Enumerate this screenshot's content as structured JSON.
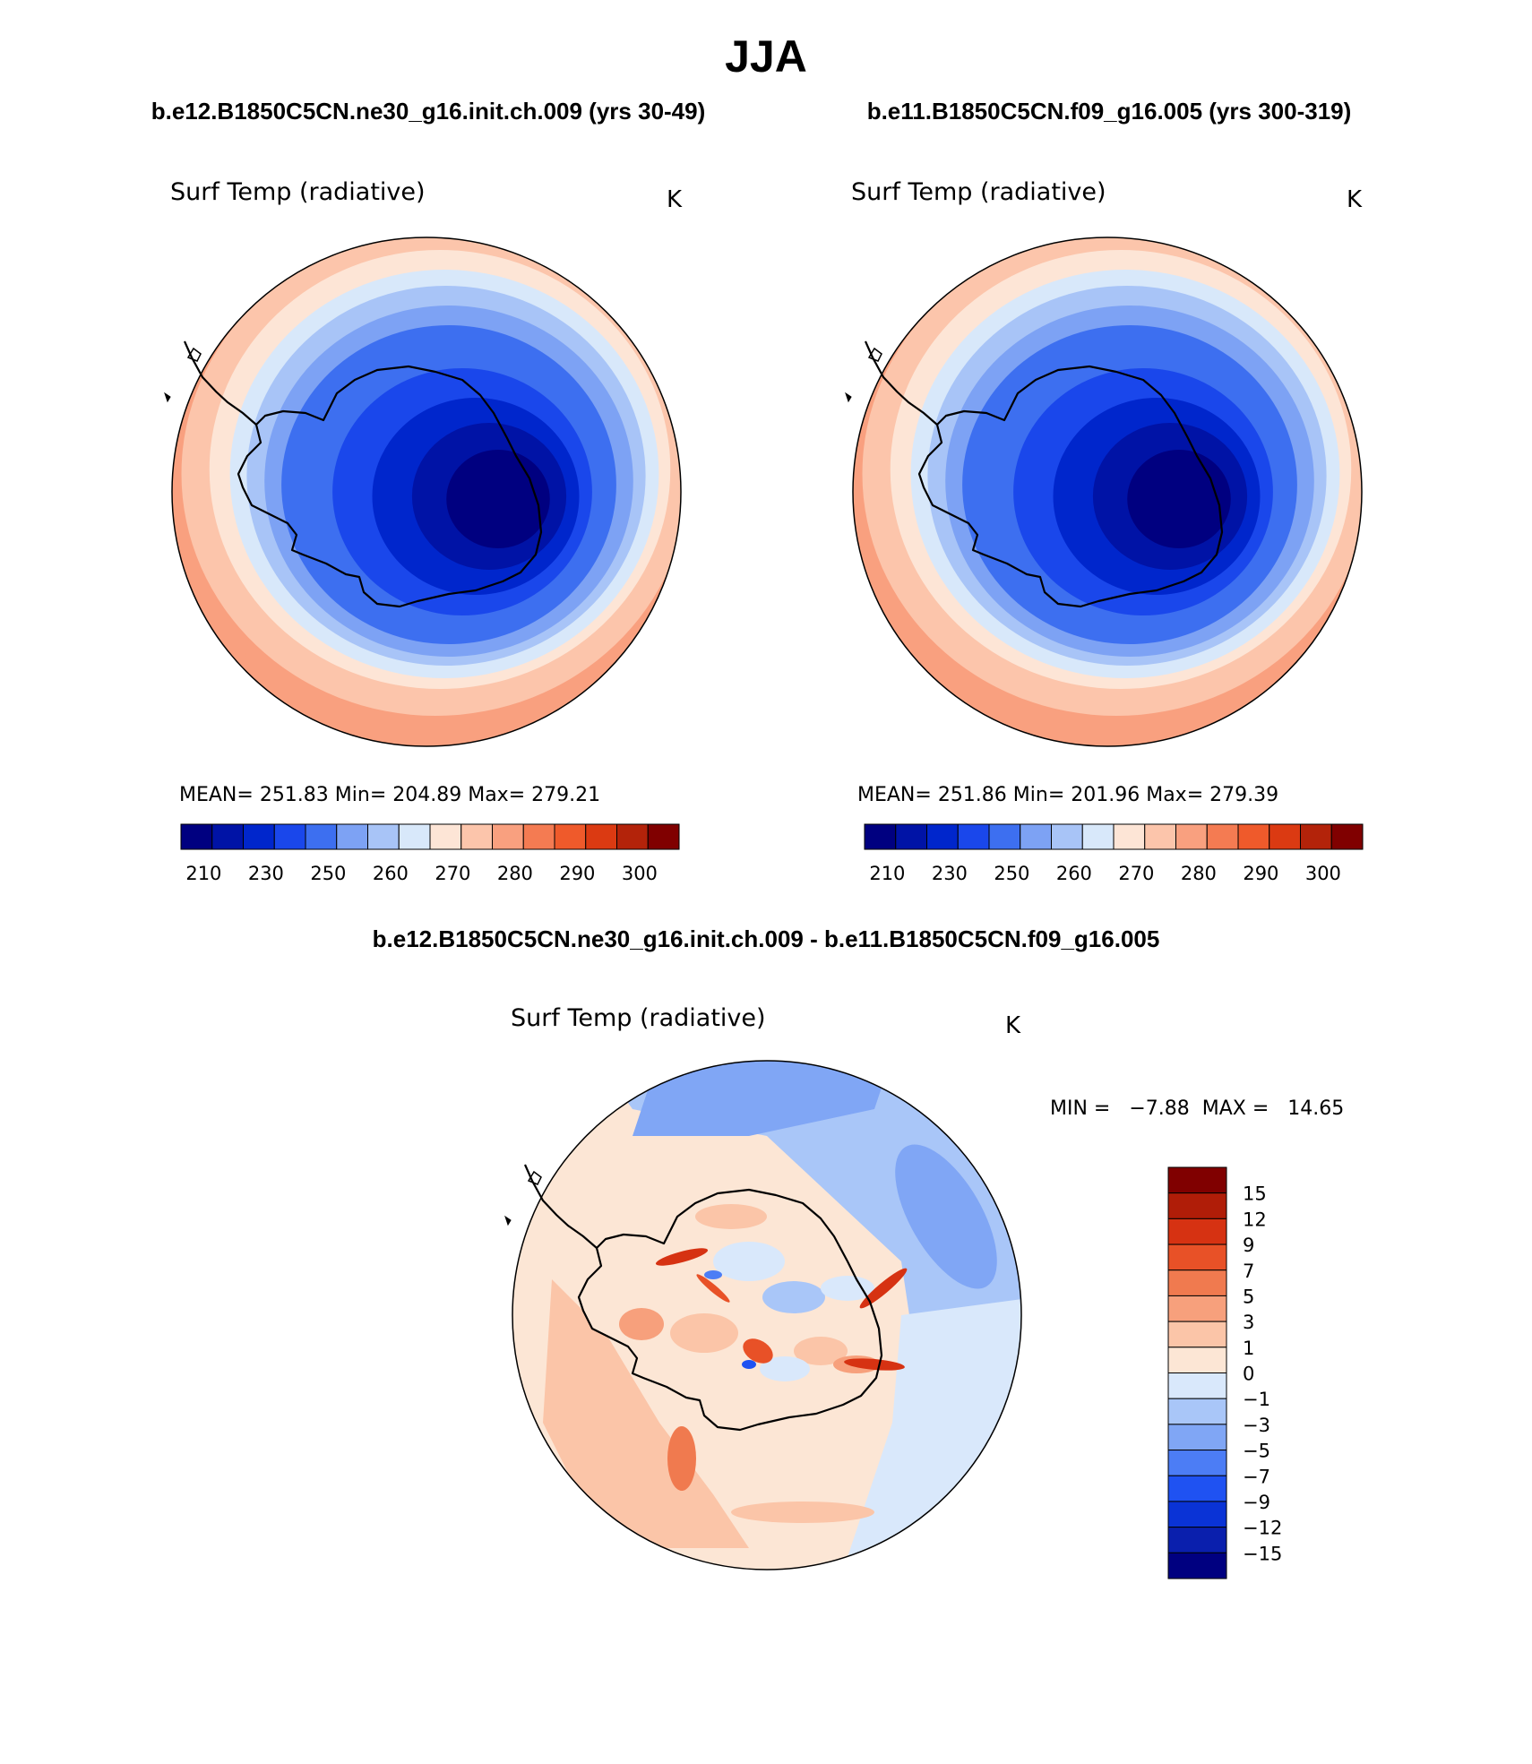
{
  "figure": {
    "season": "JJA",
    "diff_title": "b.e12.B1850C5CN.ne30_g16.init.ch.009 - b.e11.B1850C5CN.f09_g16.005",
    "palette": {
      "abs": [
        "#000080",
        "#0013a6",
        "#0026cc",
        "#1a47eb",
        "#3d6ff0",
        "#7da2f4",
        "#a8c4f7",
        "#d8e8fa",
        "#fde5d6",
        "#fcc5ab",
        "#f9a07f",
        "#f47b52",
        "#ef5a2b",
        "#db3a12",
        "#b3230a",
        "#800000"
      ],
      "diff": [
        "#000080",
        "#0a1fad",
        "#0a33d6",
        "#1f52f2",
        "#4c7df5",
        "#80a6f5",
        "#a9c6f8",
        "#d9e8fb",
        "#fce6d5",
        "#fbc5a8",
        "#f7a07c",
        "#f07a4f",
        "#e85127",
        "#d63212",
        "#b01d08",
        "#800000"
      ]
    },
    "coast_color": "#000000"
  },
  "chart_data": [
    {
      "type": "contour-map",
      "projection": "south-polar-stereographic",
      "case_title": "b.e12.B1850C5CN.ne30_g16.init.ch.009 (yrs 30-49)",
      "variable": "Surf Temp (radiative)",
      "units": "K",
      "stats_text": "MEAN= 251.83   Min= 204.89   Max= 279.21",
      "stats": {
        "mean": 251.83,
        "min": 204.89,
        "max": 279.21
      },
      "levels": [
        210,
        220,
        230,
        240,
        250,
        255,
        260,
        265,
        270,
        275,
        280,
        285,
        290,
        295,
        300
      ],
      "colorbar_labels": [
        "210",
        "230",
        "250",
        "260",
        "270",
        "280",
        "290",
        "300"
      ]
    },
    {
      "type": "contour-map",
      "projection": "south-polar-stereographic",
      "case_title": "b.e11.B1850C5CN.f09_g16.005 (yrs 300-319)",
      "variable": "Surf Temp (radiative)",
      "units": "K",
      "stats_text": "MEAN= 251.86   Min= 201.96   Max= 279.39",
      "stats": {
        "mean": 251.86,
        "min": 201.96,
        "max": 279.39
      },
      "levels": [
        210,
        220,
        230,
        240,
        250,
        255,
        260,
        265,
        270,
        275,
        280,
        285,
        290,
        295,
        300
      ],
      "colorbar_labels": [
        "210",
        "230",
        "250",
        "260",
        "270",
        "280",
        "290",
        "300"
      ]
    },
    {
      "type": "contour-map-difference",
      "projection": "south-polar-stereographic",
      "variable": "Surf Temp (radiative)",
      "units": "K",
      "stats_text": "MIN =   −7.88  MAX =   14.65",
      "stats": {
        "min": -7.88,
        "max": 14.65
      },
      "levels": [
        -15,
        -12,
        -9,
        -7,
        -5,
        -3,
        -1,
        0,
        1,
        3,
        5,
        7,
        9,
        12,
        15
      ],
      "colorbar_labels": [
        "15",
        "12",
        "9",
        "7",
        "5",
        "3",
        "1",
        "0",
        "−1",
        "−3",
        "−5",
        "−7",
        "−9",
        "−12",
        "−15"
      ]
    }
  ]
}
